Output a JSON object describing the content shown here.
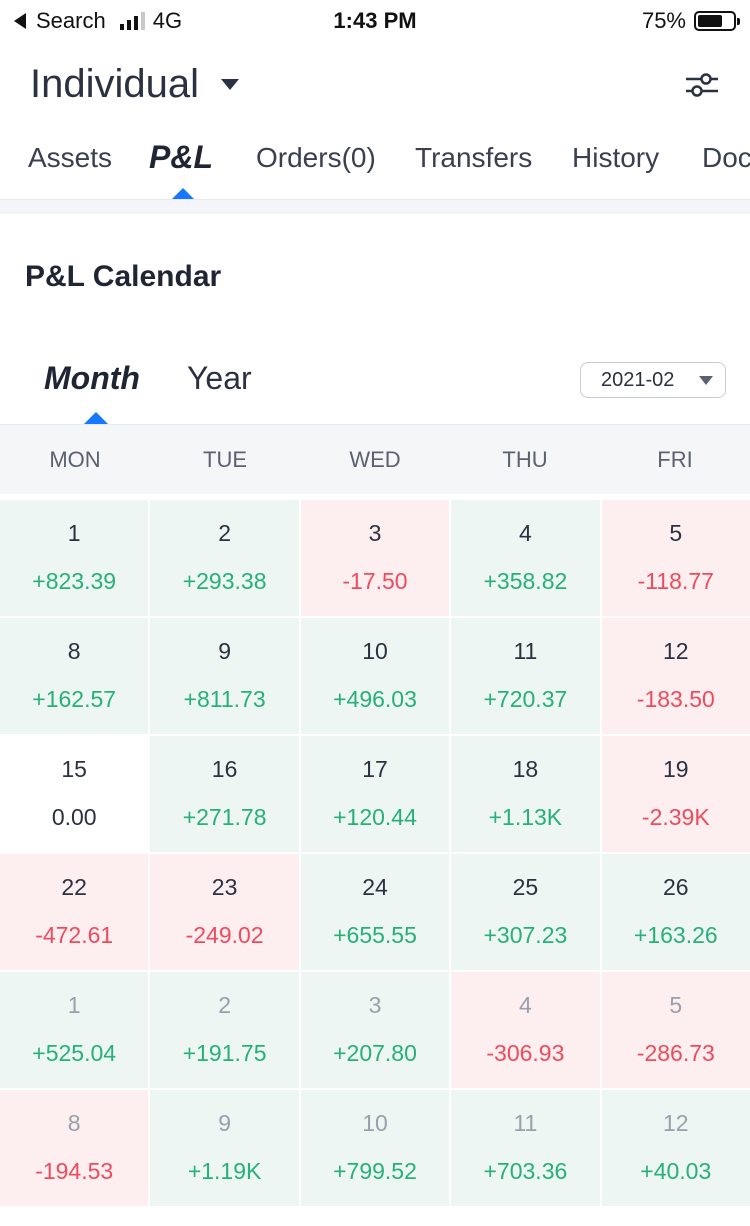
{
  "status_bar": {
    "back_label": "Search",
    "network": "4G",
    "time": "1:43 PM",
    "battery": "75%"
  },
  "account": {
    "name": "Individual"
  },
  "tabs": [
    {
      "label": "Assets"
    },
    {
      "label": "P&L"
    },
    {
      "label": "Orders(0)"
    },
    {
      "label": "Transfers"
    },
    {
      "label": "History"
    },
    {
      "label": "Doc"
    }
  ],
  "section_title": "P&L Calendar",
  "period": {
    "month_label": "Month",
    "year_label": "Year",
    "selected_month": "2021-02"
  },
  "weekdays": [
    "MON",
    "TUE",
    "WED",
    "THU",
    "FRI"
  ],
  "days": [
    {
      "day": "1",
      "value": "+823.39",
      "sign": "pos",
      "other": false
    },
    {
      "day": "2",
      "value": "+293.38",
      "sign": "pos",
      "other": false
    },
    {
      "day": "3",
      "value": "-17.50",
      "sign": "neg",
      "other": false
    },
    {
      "day": "4",
      "value": "+358.82",
      "sign": "pos",
      "other": false
    },
    {
      "day": "5",
      "value": "-118.77",
      "sign": "neg",
      "other": false
    },
    {
      "day": "8",
      "value": "+162.57",
      "sign": "pos",
      "other": false
    },
    {
      "day": "9",
      "value": "+811.73",
      "sign": "pos",
      "other": false
    },
    {
      "day": "10",
      "value": "+496.03",
      "sign": "pos",
      "other": false
    },
    {
      "day": "11",
      "value": "+720.37",
      "sign": "pos",
      "other": false
    },
    {
      "day": "12",
      "value": "-183.50",
      "sign": "neg",
      "other": false
    },
    {
      "day": "15",
      "value": "0.00",
      "sign": "zero",
      "other": false
    },
    {
      "day": "16",
      "value": "+271.78",
      "sign": "pos",
      "other": false
    },
    {
      "day": "17",
      "value": "+120.44",
      "sign": "pos",
      "other": false
    },
    {
      "day": "18",
      "value": "+1.13K",
      "sign": "pos",
      "other": false
    },
    {
      "day": "19",
      "value": "-2.39K",
      "sign": "neg",
      "other": false
    },
    {
      "day": "22",
      "value": "-472.61",
      "sign": "neg",
      "other": false
    },
    {
      "day": "23",
      "value": "-249.02",
      "sign": "neg",
      "other": false
    },
    {
      "day": "24",
      "value": "+655.55",
      "sign": "pos",
      "other": false
    },
    {
      "day": "25",
      "value": "+307.23",
      "sign": "pos",
      "other": false
    },
    {
      "day": "26",
      "value": "+163.26",
      "sign": "pos",
      "other": false
    },
    {
      "day": "1",
      "value": "+525.04",
      "sign": "pos",
      "other": true
    },
    {
      "day": "2",
      "value": "+191.75",
      "sign": "pos",
      "other": true
    },
    {
      "day": "3",
      "value": "+207.80",
      "sign": "pos",
      "other": true
    },
    {
      "day": "4",
      "value": "-306.93",
      "sign": "neg",
      "other": true
    },
    {
      "day": "5",
      "value": "-286.73",
      "sign": "neg",
      "other": true
    },
    {
      "day": "8",
      "value": "-194.53",
      "sign": "neg",
      "other": true
    },
    {
      "day": "9",
      "value": "+1.19K",
      "sign": "pos",
      "other": true
    },
    {
      "day": "10",
      "value": "+799.52",
      "sign": "pos",
      "other": true
    },
    {
      "day": "11",
      "value": "+703.36",
      "sign": "pos",
      "other": true
    },
    {
      "day": "12",
      "value": "+40.03",
      "sign": "pos",
      "other": true
    }
  ],
  "colors": {
    "positive": "#27b079",
    "negative": "#ef4b5c",
    "accent": "#1677ff"
  }
}
